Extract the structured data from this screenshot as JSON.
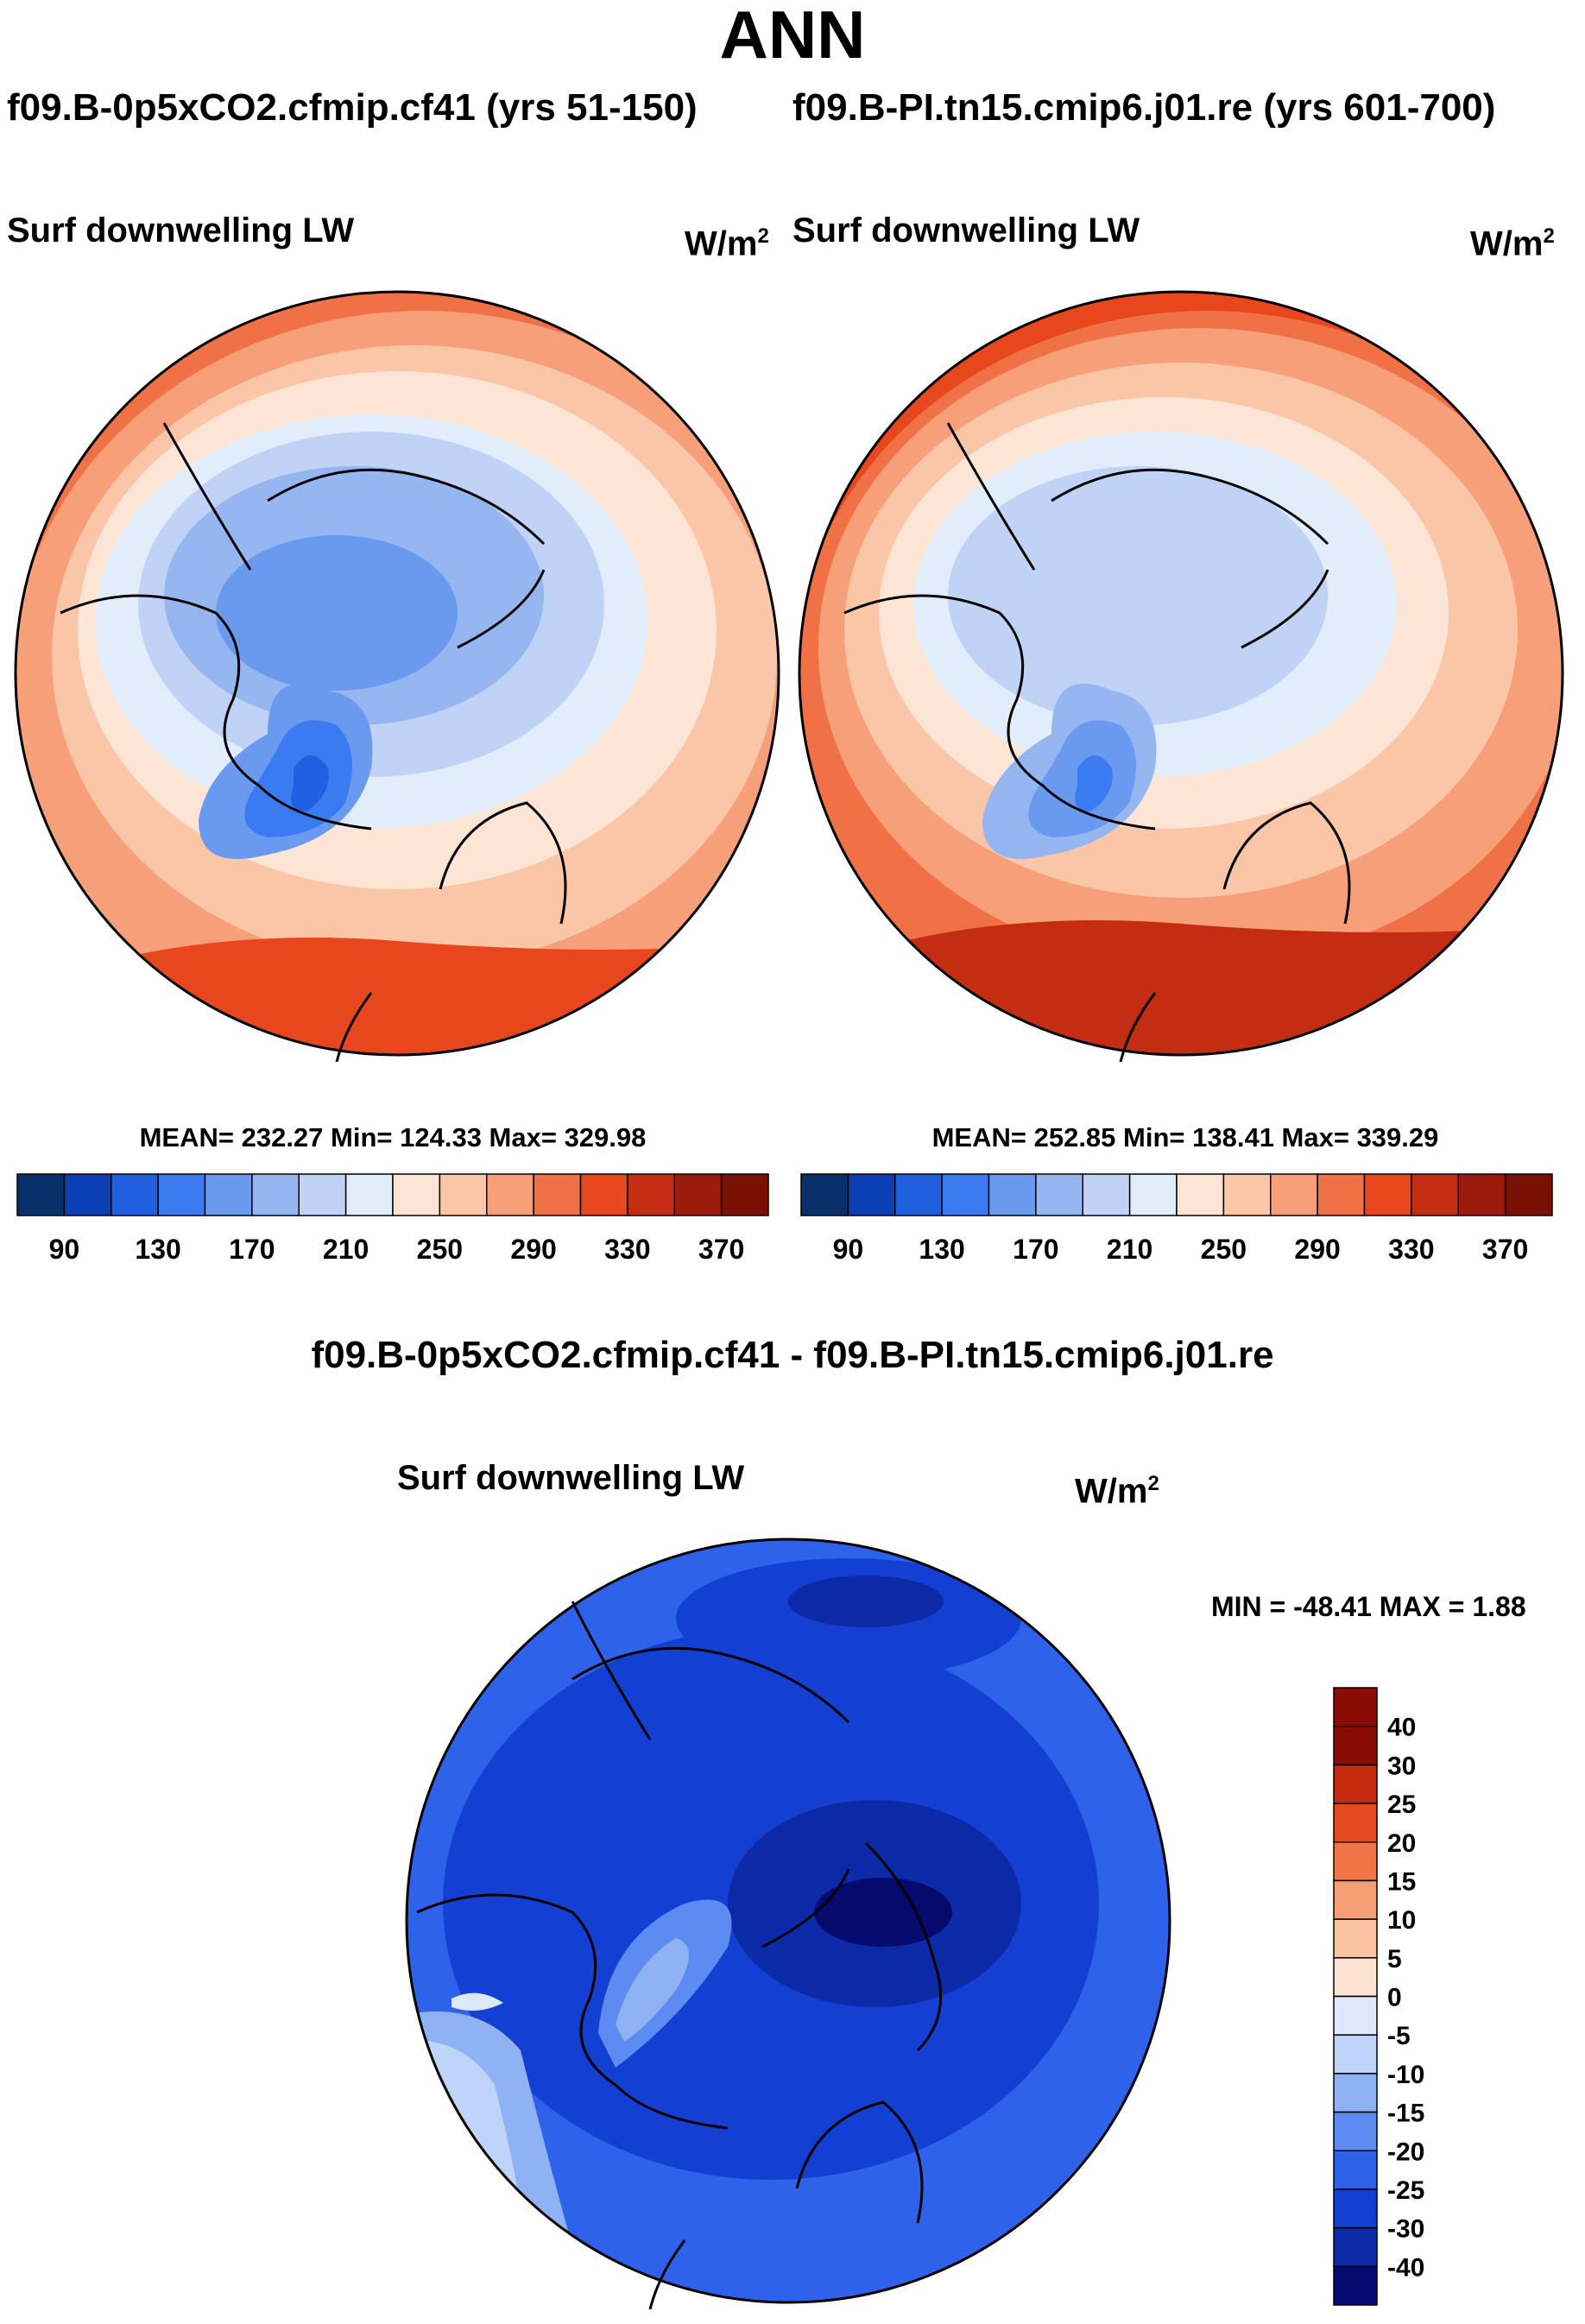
{
  "title": "ANN",
  "case_titles": {
    "left": "f09.B-0p5xCO2.cfmip.cf41 (yrs 51-150)",
    "right": "f09.B-PI.tn15.cmip6.j01.re (yrs 601-700)"
  },
  "panel_label": "Surf downwelling LW",
  "units_base": "W/m",
  "units_exp": "2",
  "icons": {
    "map": "polar-stereographic-map-icon"
  },
  "panels": [
    {
      "stats": "MEAN= 232.27  Min= 124.33  Max= 329.98"
    },
    {
      "stats": "MEAN= 252.85  Min= 138.41  Max= 339.29"
    }
  ],
  "diff_title": "f09.B-0p5xCO2.cfmip.cf41 - f09.B-PI.tn15.cmip6.j01.re",
  "diff_minmax": "MIN = -48.41 MAX =   1.88",
  "colors": {
    "abs_palette": [
      "#08306b",
      "#0c3fb5",
      "#1f5fe0",
      "#3b7bf2",
      "#6a99f0",
      "#96b6f2",
      "#c0d3f7",
      "#e2edfb",
      "#fde5d6",
      "#fbc5a8",
      "#f79f79",
      "#f07145",
      "#e8461c",
      "#c42d12",
      "#9b1c0a",
      "#7a0f04"
    ],
    "diff_palette": [
      "#050a6f",
      "#0c2aa8",
      "#1340d2",
      "#2f62ea",
      "#5c8cf2",
      "#8fb2f4",
      "#bed4f8",
      "#dde9fb",
      "#fde4d2",
      "#fbc4a2",
      "#f79f74",
      "#f07446",
      "#e6481f",
      "#c52c0f",
      "#8a0c04"
    ]
  },
  "chart_data": [
    {
      "type": "heatmap",
      "projection": "north polar stereographic",
      "title": "Surf downwelling LW",
      "units": "W/m2",
      "mean": 232.27,
      "min": 124.33,
      "max": 329.98,
      "colorbar_ticks": [
        "90",
        "130",
        "170",
        "210",
        "250",
        "290",
        "330",
        "370"
      ],
      "colorbar_levels": [
        80,
        90,
        100,
        110,
        120,
        130,
        140,
        150,
        160,
        170,
        180,
        190,
        200,
        210,
        220,
        230,
        240,
        250,
        260,
        270,
        280,
        290,
        300,
        310,
        320,
        330,
        340,
        350,
        360,
        370,
        380
      ]
    },
    {
      "type": "heatmap",
      "projection": "north polar stereographic",
      "title": "Surf downwelling LW",
      "units": "W/m2",
      "mean": 252.85,
      "min": 138.41,
      "max": 339.29,
      "colorbar_ticks": [
        "90",
        "130",
        "170",
        "210",
        "250",
        "290",
        "330",
        "370"
      ],
      "colorbar_levels": [
        80,
        90,
        100,
        110,
        120,
        130,
        140,
        150,
        160,
        170,
        180,
        190,
        200,
        210,
        220,
        230,
        240,
        250,
        260,
        270,
        280,
        290,
        300,
        310,
        320,
        330,
        340,
        350,
        360,
        370,
        380
      ]
    },
    {
      "type": "heatmap",
      "projection": "north polar stereographic",
      "title": "Surf downwelling LW",
      "units": "W/m2",
      "min": -48.41,
      "max": 1.88,
      "colorbar_labels": [
        "40",
        "30",
        "25",
        "20",
        "15",
        "10",
        "5",
        "0",
        "-5",
        "-10",
        "-15",
        "-20",
        "-25",
        "-30",
        "-40"
      ]
    }
  ]
}
